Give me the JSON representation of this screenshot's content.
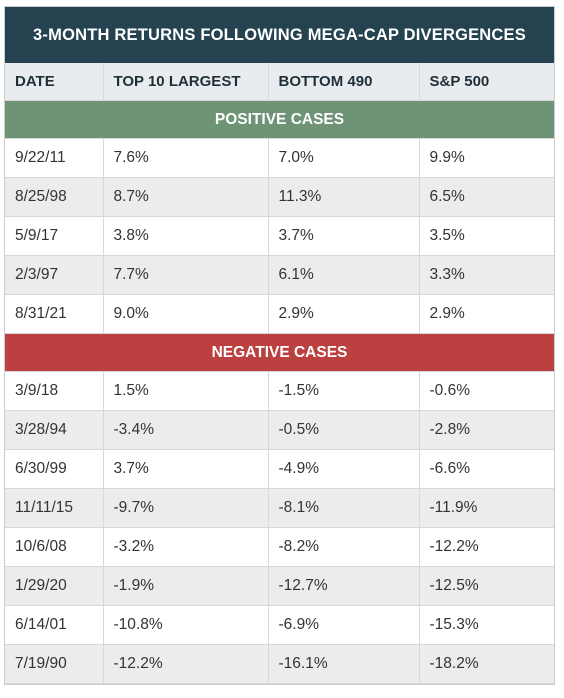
{
  "title": "3-MONTH RETURNS FOLLOWING MEGA-CAP DIVERGENCES",
  "colors": {
    "title_bg": "#24424f",
    "header_bg": "#e9ecef",
    "positive_bg": "#6e9375",
    "negative_bg": "#bd4041",
    "alt_row_bg": "#ececec"
  },
  "chart_data": {
    "type": "table",
    "title": "3-MONTH RETURNS FOLLOWING MEGA-CAP DIVERGENCES",
    "columns": [
      "DATE",
      "TOP 10 LARGEST",
      "BOTTOM 490",
      "S&P 500"
    ],
    "sections": [
      {
        "label": "POSITIVE CASES",
        "rows": [
          [
            "9/22/11",
            "7.6%",
            "7.0%",
            "9.9%"
          ],
          [
            "8/25/98",
            "8.7%",
            "11.3%",
            "6.5%"
          ],
          [
            "5/9/17",
            "3.8%",
            "3.7%",
            "3.5%"
          ],
          [
            "2/3/97",
            "7.7%",
            "6.1%",
            "3.3%"
          ],
          [
            "8/31/21",
            "9.0%",
            "2.9%",
            "2.9%"
          ]
        ]
      },
      {
        "label": "NEGATIVE CASES",
        "rows": [
          [
            "3/9/18",
            "1.5%",
            "-1.5%",
            "-0.6%"
          ],
          [
            "3/28/94",
            "-3.4%",
            "-0.5%",
            "-2.8%"
          ],
          [
            "6/30/99",
            "3.7%",
            "-4.9%",
            "-6.6%"
          ],
          [
            "11/11/15",
            "-9.7%",
            "-8.1%",
            "-11.9%"
          ],
          [
            "10/6/08",
            "-3.2%",
            "-8.2%",
            "-12.2%"
          ],
          [
            "1/29/20",
            "-1.9%",
            "-12.7%",
            "-12.5%"
          ],
          [
            "6/14/01",
            "-10.8%",
            "-6.9%",
            "-15.3%"
          ],
          [
            "7/19/90",
            "-12.2%",
            "-16.1%",
            "-18.2%"
          ]
        ]
      }
    ]
  }
}
